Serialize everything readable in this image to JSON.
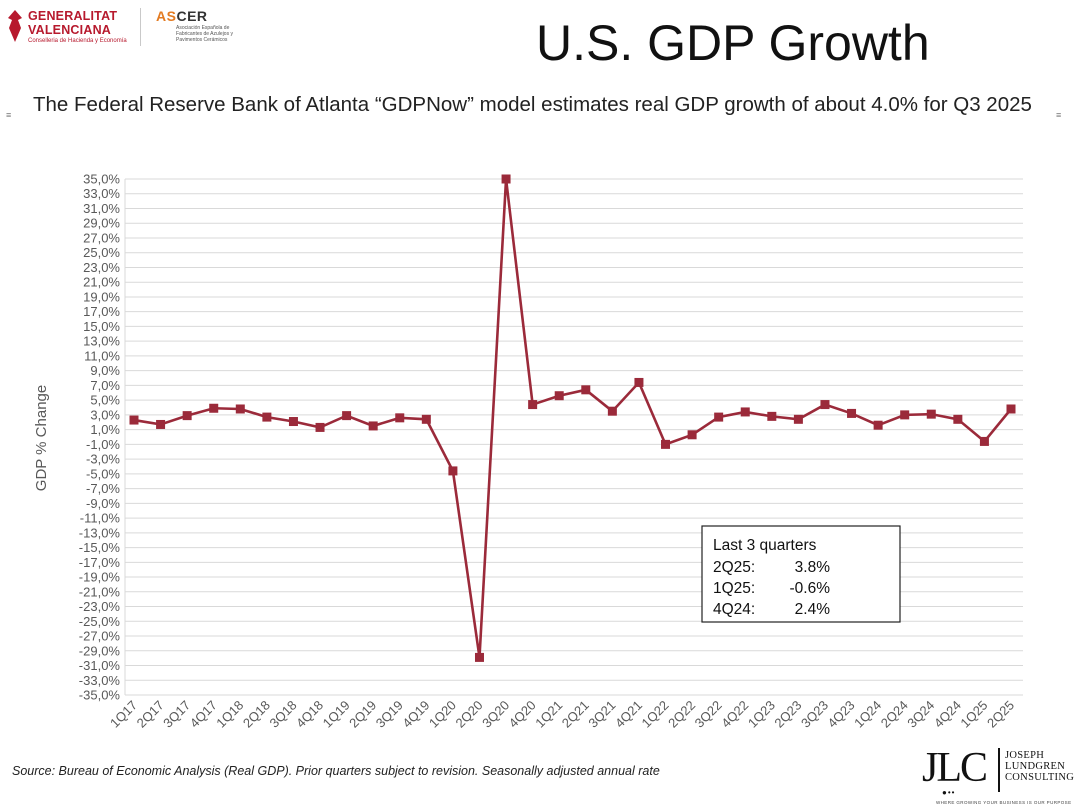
{
  "logos": {
    "gv_line1": "GENERALITAT",
    "gv_line2": "VALENCIANA",
    "gv_line3": "Conselleria de Hacienda y Economía",
    "ascer_as": "AS",
    "ascer_cer": "CER",
    "ascer_sub": "Asociación Española de Fabricantes de Azulejos y Pavimentos Cerámicos",
    "jlc_letters": "JLC",
    "jlc_name_1": "JOSEPH",
    "jlc_name_2": "LUNDGREN",
    "jlc_name_3": "CONSULTING",
    "jlc_tagline": "WHERE GROWING YOUR BUSINESS IS OUR PURPOSE"
  },
  "title": "U.S. GDP Growth",
  "subtitle": "The Federal Reserve Bank of Atlanta “GDPNow” model estimates real GDP growth of about 4.0% for Q3 2025",
  "source": "Source:  Bureau of Economic Analysis (Real GDP). Prior quarters subject to revision. Seasonally adjusted annual rate",
  "colors": {
    "line": "#9b2a3a",
    "grid": "#d9d9d9",
    "axis_text": "#595959"
  },
  "chart_data": {
    "type": "line",
    "title": "",
    "xlabel": "",
    "ylabel": "GDP % Change",
    "ylim": [
      -35,
      35
    ],
    "ytick_step": 2,
    "categories": [
      "1Q17",
      "2Q17",
      "3Q17",
      "4Q17",
      "1Q18",
      "2Q18",
      "3Q18",
      "4Q18",
      "1Q19",
      "2Q19",
      "3Q19",
      "4Q19",
      "1Q20",
      "2Q20",
      "3Q20",
      "4Q20",
      "1Q21",
      "2Q21",
      "3Q21",
      "4Q21",
      "1Q22",
      "2Q22",
      "3Q22",
      "4Q22",
      "1Q23",
      "2Q23",
      "3Q23",
      "4Q23",
      "1Q24",
      "2Q24",
      "3Q24",
      "4Q24",
      "1Q25",
      "2Q25"
    ],
    "series": [
      {
        "name": "GDP % Change",
        "values": [
          2.3,
          1.7,
          2.9,
          3.9,
          3.8,
          2.7,
          2.1,
          1.3,
          2.9,
          1.5,
          2.6,
          2.4,
          -4.6,
          -29.9,
          35.0,
          4.4,
          5.6,
          6.4,
          3.5,
          7.4,
          -1.0,
          0.3,
          2.7,
          3.4,
          2.8,
          2.4,
          4.4,
          3.2,
          1.6,
          3.0,
          3.1,
          2.4,
          -0.6,
          3.8
        ]
      }
    ],
    "grid": "horizontal",
    "legend": "none",
    "annotation": {
      "title": "Last 3 quarters",
      "rows": [
        {
          "label": "2Q25:",
          "value": "3.8%"
        },
        {
          "label": "1Q25:",
          "value": "-0.6%"
        },
        {
          "label": "4Q24:",
          "value": "2.4%"
        }
      ]
    }
  }
}
